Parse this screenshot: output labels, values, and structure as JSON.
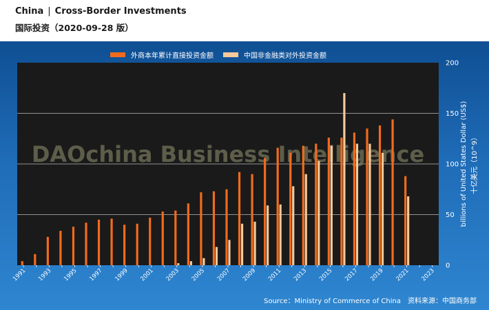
{
  "header": {
    "country": "China",
    "separator": "|",
    "topic": "Cross-Border Investments",
    "subtitle": "国际投资（2020-09-28 版）"
  },
  "watermark": "DAOchina Business Intelligence",
  "source": {
    "en": "Source：Ministry of Commerce of China",
    "zh": "资料来源：中国商务部"
  },
  "colors": {
    "series1": "#f26b1d",
    "series2": "#f7c99a",
    "plot_bg": "#1a1a1a"
  },
  "chart_data": {
    "type": "bar",
    "x": [
      1991,
      1992,
      1993,
      1994,
      1995,
      1996,
      1997,
      1998,
      1999,
      2000,
      2001,
      2002,
      2003,
      2004,
      2005,
      2006,
      2007,
      2008,
      2009,
      2010,
      2011,
      2012,
      2013,
      2014,
      2015,
      2016,
      2017,
      2018,
      2019,
      2020,
      2021,
      2022,
      2023
    ],
    "series": [
      {
        "name": "外商本年累计直接投资金额",
        "color": "#f26b1d",
        "values": [
          4,
          11,
          28,
          34,
          38,
          42,
          45,
          46,
          40,
          41,
          47,
          53,
          54,
          61,
          72,
          73,
          75,
          92,
          90,
          106,
          116,
          111,
          118,
          120,
          126,
          126,
          131,
          135,
          138,
          144,
          88,
          0,
          0
        ]
      },
      {
        "name": "中国非金融类对外投资金额",
        "color": "#f7c99a",
        "values": [
          0,
          0,
          0,
          0,
          0,
          0,
          0,
          0,
          0,
          0,
          0,
          0,
          2,
          4,
          7,
          18,
          25,
          41,
          43,
          59,
          60,
          78,
          90,
          103,
          118,
          170,
          120,
          120,
          111,
          0,
          68,
          0,
          0
        ]
      }
    ],
    "tick_labels_x": [
      "1991",
      "1993",
      "1995",
      "1997",
      "1999",
      "2001",
      "2003",
      "2005",
      "2007",
      "2009",
      "2011",
      "2013",
      "2015",
      "2017",
      "2019",
      "2021",
      "2023"
    ],
    "tick_labels_y": [
      "0",
      "50",
      "100",
      "150",
      "200"
    ],
    "ylim": [
      0,
      200
    ],
    "ylabel": "billions of United States Dollar (US$)",
    "ylabel2": "十亿美元（10^9）",
    "y_axis_side": "right",
    "grid": "horizontal",
    "legend_position": "top"
  }
}
